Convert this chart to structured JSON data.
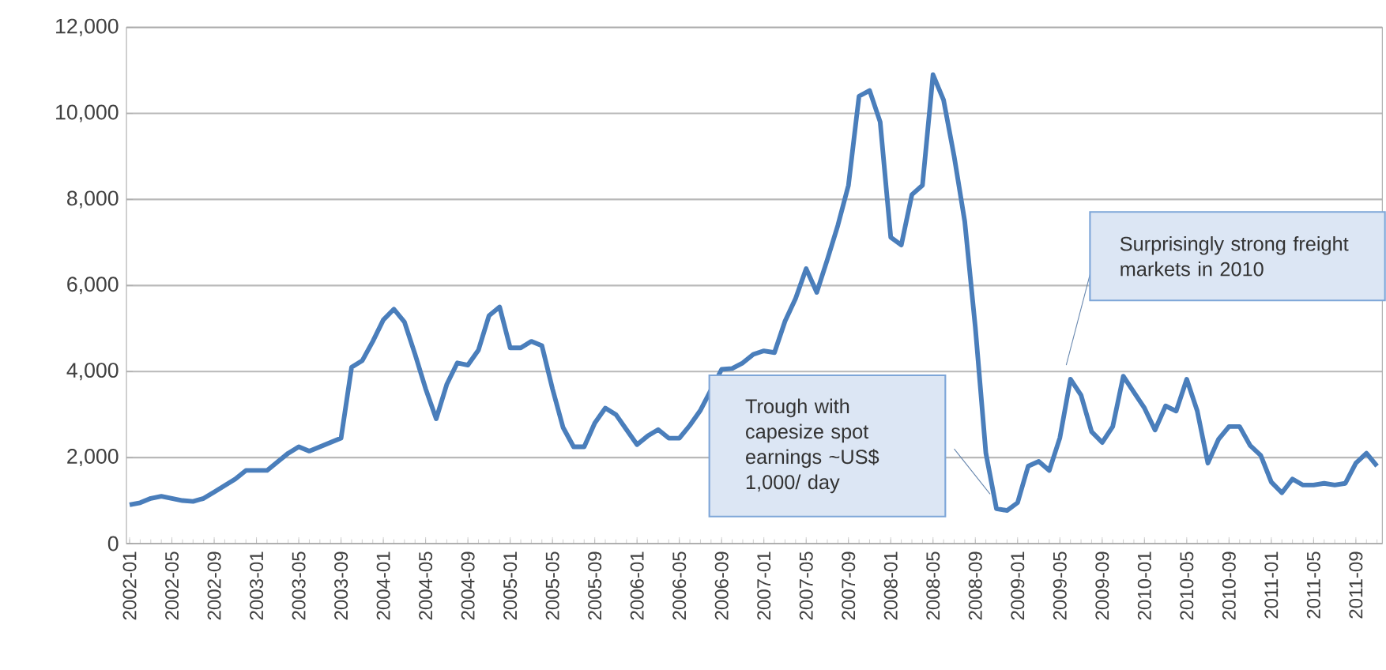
{
  "chart_data": {
    "type": "line",
    "categories": [
      "2002-01",
      null,
      null,
      null,
      "2002-05",
      null,
      null,
      null,
      "2002-09",
      null,
      null,
      null,
      "2003-01",
      null,
      null,
      null,
      "2003-05",
      null,
      null,
      null,
      "2003-09",
      null,
      null,
      null,
      "2004-01",
      null,
      null,
      null,
      "2004-05",
      null,
      null,
      null,
      "2004-09",
      null,
      null,
      null,
      "2005-01",
      null,
      null,
      null,
      "2005-05",
      null,
      null,
      null,
      "2005-09",
      null,
      null,
      null,
      "2006-01",
      null,
      null,
      null,
      "2006-05",
      null,
      null,
      null,
      "2006-09",
      null,
      null,
      null,
      "2007-01",
      null,
      null,
      null,
      "2007-05",
      null,
      null,
      null,
      "2007-09",
      null,
      null,
      null,
      "2008-01",
      null,
      null,
      null,
      "2008-05",
      null,
      null,
      null,
      "2008-09",
      null,
      null,
      null,
      "2009-01",
      null,
      null,
      null,
      "2009-05",
      null,
      null,
      null,
      "2009-09",
      null,
      null,
      null,
      "2010-01",
      null,
      null,
      null,
      "2010-05",
      null,
      null,
      null,
      "2010-09",
      null,
      null,
      null,
      "2011-01",
      null,
      null,
      null,
      "2011-05",
      null,
      null,
      null,
      "2011-09",
      null,
      null
    ],
    "series": [
      {
        "color": "#4a7ebb",
        "values": [
          900,
          950,
          1050,
          1100,
          1050,
          1000,
          980,
          1050,
          1200,
          1350,
          1500,
          1700,
          1700,
          1700,
          1900,
          2100,
          2250,
          2150,
          2250,
          2350,
          2450,
          4100,
          4250,
          4700,
          5200,
          5450,
          5150,
          4400,
          3600,
          2900,
          3700,
          4200,
          4150,
          4500,
          5300,
          5500,
          4550,
          4550,
          4700,
          4600,
          3600,
          2700,
          2250,
          2250,
          2800,
          3150,
          3000,
          2650,
          2300,
          2500,
          2650,
          2450,
          2450,
          2750,
          3100,
          null,
          4050,
          4070,
          4200,
          4400,
          4480,
          4440,
          5170,
          5700,
          6390,
          5840,
          6600,
          7400,
          8330,
          10400,
          10530,
          9800,
          7120,
          6940,
          8110,
          8330,
          10900,
          10310,
          9000,
          7490,
          5030,
          2100,
          810,
          770,
          950,
          1800,
          1910,
          1700,
          2460,
          3820,
          3450,
          2600,
          2350,
          2720,
          3890,
          3520,
          3150,
          2640,
          3200,
          3080,
          3820,
          3080,
          1870,
          2420,
          2720,
          2720,
          2280,
          2050,
          1430,
          1180,
          1500,
          1360,
          1360,
          1400,
          1360,
          1400,
          1870,
          2100,
          1800
        ]
      }
    ],
    "ylim": [
      0,
      12000
    ],
    "yticks": [
      0,
      {
        "value": 2000,
        "label": "2,000"
      },
      {
        "value": 4000,
        "label": "4,000"
      },
      {
        "value": 6000,
        "label": "6,000"
      },
      {
        "value": 8000,
        "label": "8,000"
      },
      {
        "value": 10000,
        "label": "10,000"
      },
      {
        "value": 12000,
        "label": "12,000"
      }
    ],
    "grid": "y",
    "marker": "none",
    "line_style": "solid",
    "annotations": [
      "Trough with capesize spot earnings ~US$ 1,000/ day",
      "Surprisingly strong freight markets in 2010"
    ]
  }
}
